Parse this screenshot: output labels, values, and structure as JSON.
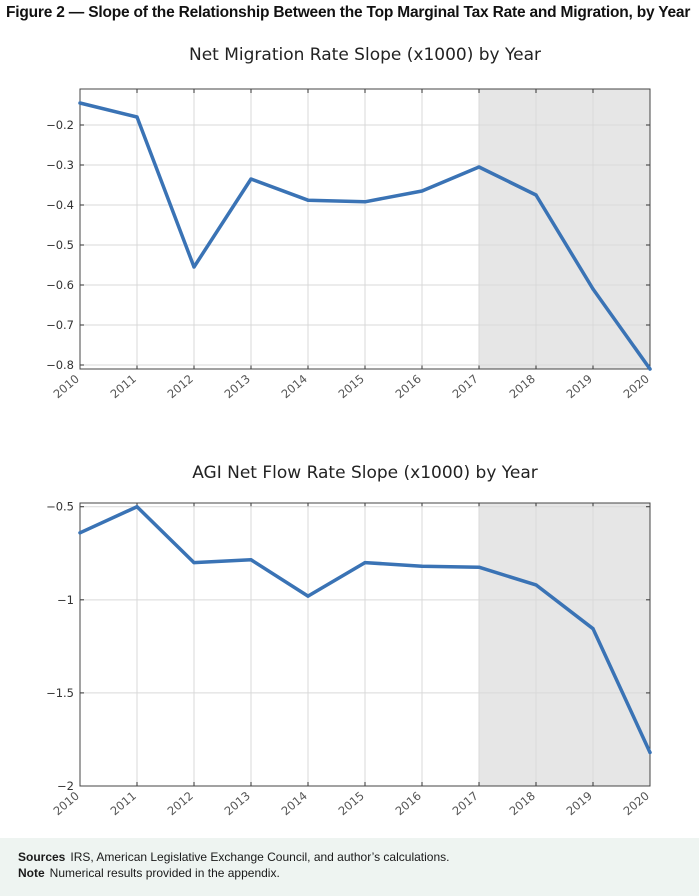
{
  "figure": {
    "title": "Figure 2 — Slope of the Relationship Between the Top Marginal Tax Rate and Migration, by Year"
  },
  "chart_data": [
    {
      "type": "line",
      "title": "Net Migration Rate Slope (x1000) by Year",
      "xlabel": "",
      "ylabel": "",
      "x": [
        2010,
        2011,
        2012,
        2013,
        2014,
        2015,
        2016,
        2017,
        2018,
        2019,
        2020
      ],
      "series": [
        {
          "values": [
            -0.145,
            -0.18,
            -0.555,
            -0.335,
            -0.388,
            -0.392,
            -0.365,
            -0.305,
            -0.375,
            -0.61,
            -0.81
          ]
        }
      ],
      "xlim": [
        2010,
        2020
      ],
      "ylim": [
        -0.81,
        -0.11
      ],
      "yticks": [
        -0.2,
        -0.3,
        -0.4,
        -0.5,
        -0.6,
        -0.7,
        -0.8
      ],
      "ytick_labels": [
        "−0.2",
        "−0.3",
        "−0.4",
        "−0.5",
        "−0.6",
        "−0.7",
        "−0.8"
      ],
      "xtick_labels": [
        "2010",
        "2011",
        "2012",
        "2013",
        "2014",
        "2015",
        "2016",
        "2017",
        "2018",
        "2019",
        "2020"
      ],
      "shaded_region": [
        2017,
        2020
      ],
      "grid": true,
      "line_color": "#3a73b5",
      "shade_color": "#e6e6e6"
    },
    {
      "type": "line",
      "title": "AGI Net Flow Rate Slope (x1000) by Year",
      "xlabel": "",
      "ylabel": "",
      "x": [
        2010,
        2011,
        2012,
        2013,
        2014,
        2015,
        2016,
        2017,
        2018,
        2019,
        2020
      ],
      "series": [
        {
          "values": [
            -0.64,
            -0.5,
            -0.8,
            -0.785,
            -0.98,
            -0.8,
            -0.82,
            -0.825,
            -0.92,
            -1.155,
            -1.82
          ]
        }
      ],
      "xlim": [
        2010,
        2020
      ],
      "ylim": [
        -2,
        -0.48
      ],
      "yticks": [
        -0.5,
        -1,
        -1.5,
        -2
      ],
      "ytick_labels": [
        "−0.5",
        "−1",
        "−1.5",
        "−2"
      ],
      "xtick_labels": [
        "2010",
        "2011",
        "2012",
        "2013",
        "2014",
        "2015",
        "2016",
        "2017",
        "2018",
        "2019",
        "2020"
      ],
      "shaded_region": [
        2017,
        2020
      ],
      "grid": true,
      "line_color": "#3a73b5",
      "shade_color": "#e6e6e6"
    }
  ],
  "notes": {
    "sources_label": "Sources",
    "sources_text": "IRS, American Legislative Exchange Council, and author’s calculations.",
    "note_label": "Note",
    "note_text": "Numerical results provided in the appendix."
  }
}
